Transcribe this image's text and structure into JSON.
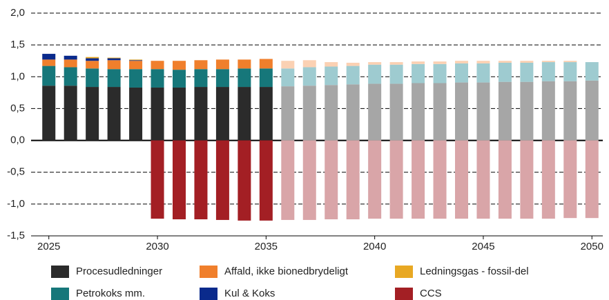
{
  "chart_data": {
    "type": "stacked_bar",
    "categories": [
      2025,
      null,
      null,
      null,
      null,
      2030,
      null,
      null,
      null,
      null,
      2035,
      null,
      null,
      null,
      null,
      2040,
      null,
      null,
      null,
      null,
      2045,
      null,
      null,
      null,
      null,
      2050
    ],
    "ylim": [
      -1.5,
      2.0
    ],
    "yticks": [
      {
        "value": -1.5,
        "label": "-1,5"
      },
      {
        "value": -1.0,
        "label": "-1,0"
      },
      {
        "value": -0.5,
        "label": "-0,5"
      },
      {
        "value": 0,
        "label": "0,0"
      },
      {
        "value": 0.5,
        "label": "0,5"
      },
      {
        "value": 1.0,
        "label": "1,0"
      },
      {
        "value": 1.5,
        "label": "1,5"
      },
      {
        "value": 2.0,
        "label": "2,0"
      }
    ],
    "grid": true,
    "series": [
      {
        "name": "Procesudledninger",
        "color": "#2b2b2b",
        "colors": [
          "#2b2b2b",
          "#2b2b2b",
          "#2b2b2b",
          "#2b2b2b",
          "#2b2b2b",
          "#2b2b2b",
          "#2b2b2b",
          "#2b2b2b",
          "#2b2b2b",
          "#2b2b2b",
          "#2b2b2b",
          "#a6a6a6",
          "#a6a6a6",
          "#a6a6a6",
          "#a6a6a6",
          "#a6a6a6",
          "#a6a6a6",
          "#a6a6a6",
          "#a6a6a6",
          "#a6a6a6",
          "#a6a6a6",
          "#a6a6a6",
          "#a6a6a6",
          "#a6a6a6",
          "#a6a6a6",
          "#a6a6a6"
        ],
        "values": [
          0.86,
          0.86,
          0.84,
          0.84,
          0.83,
          0.83,
          0.83,
          0.84,
          0.84,
          0.84,
          0.84,
          0.85,
          0.86,
          0.87,
          0.88,
          0.89,
          0.89,
          0.9,
          0.9,
          0.91,
          0.91,
          0.92,
          0.92,
          0.93,
          0.93,
          0.94
        ]
      },
      {
        "name": "Petrokoks mm.",
        "color": "#16777a",
        "colors": [
          "#16777a",
          "#16777a",
          "#16777a",
          "#16777a",
          "#16777a",
          "#16777a",
          "#16777a",
          "#16777a",
          "#16777a",
          "#16777a",
          "#16777a",
          "#9ecbd0",
          "#9ecbd0",
          "#9ecbd0",
          "#9ecbd0",
          "#9ecbd0",
          "#9ecbd0",
          "#9ecbd0",
          "#9ecbd0",
          "#9ecbd0",
          "#9ecbd0",
          "#9ecbd0",
          "#9ecbd0",
          "#9ecbd0",
          "#9ecbd0",
          "#9ecbd0"
        ],
        "values": [
          0.31,
          0.29,
          0.29,
          0.28,
          0.29,
          0.29,
          0.28,
          0.28,
          0.28,
          0.29,
          0.29,
          0.28,
          0.29,
          0.29,
          0.29,
          0.3,
          0.3,
          0.3,
          0.3,
          0.3,
          0.3,
          0.3,
          0.3,
          0.3,
          0.3,
          0.29
        ]
      },
      {
        "name": "Affald, ikke bionedbrydeligt",
        "color": "#f07f2c",
        "colors": [
          "#f07f2c",
          "#f07f2c",
          "#f07f2c",
          "#f07f2c",
          "#f07f2c",
          "#f07f2c",
          "#f07f2c",
          "#f07f2c",
          "#f07f2c",
          "#f07f2c",
          "#f07f2c",
          "#fbd1b3",
          "#fbd1b3",
          "#fbd1b3",
          "#fbd1b3",
          "#fbd1b3",
          "#fbd1b3",
          "#fbd1b3",
          "#fbd1b3",
          "#fbd1b3",
          "#fbd1b3",
          "#fbd1b3",
          "#fbd1b3",
          "#fbd1b3",
          "#fbd1b3",
          "#fbd1b3"
        ],
        "values": [
          0.1,
          0.12,
          0.12,
          0.14,
          0.13,
          0.13,
          0.14,
          0.14,
          0.15,
          0.14,
          0.15,
          0.12,
          0.11,
          0.07,
          0.05,
          0.04,
          0.04,
          0.04,
          0.04,
          0.04,
          0.04,
          0.03,
          0.03,
          0.02,
          0.02,
          0.0
        ]
      },
      {
        "name": "Kul & Koks",
        "color": "#0a2a8c",
        "colors": [
          "#0a2a8c",
          "#0a2a8c",
          "#0a2a8c",
          "#0a2a8c",
          "#0a2a8c",
          "#0a2a8c",
          "#0a2a8c",
          "#0a2a8c",
          "#0a2a8c",
          "#0a2a8c",
          "#0a2a8c",
          "#9aa6cf",
          "#9aa6cf",
          "#9aa6cf",
          "#9aa6cf",
          "#9aa6cf",
          "#9aa6cf",
          "#9aa6cf",
          "#9aa6cf",
          "#9aa6cf",
          "#9aa6cf",
          "#9aa6cf",
          "#9aa6cf",
          "#9aa6cf",
          "#9aa6cf",
          "#9aa6cf"
        ],
        "values": [
          0.09,
          0.06,
          0.04,
          0.03,
          0.01,
          0,
          0,
          0,
          0,
          0,
          0,
          0,
          0,
          0,
          0,
          0,
          0,
          0,
          0,
          0,
          0,
          0,
          0,
          0,
          0,
          0
        ]
      },
      {
        "name": "Ledningsgas - fossil-del",
        "color": "#e8a823",
        "colors": [
          "#e8a823",
          "#e8a823",
          "#e8a823",
          "#e8a823",
          "#e8a823",
          "#e8a823",
          "#e8a823",
          "#e8a823",
          "#e8a823",
          "#e8a823",
          "#e8a823",
          "#f7dca0",
          "#f7dca0",
          "#f7dca0",
          "#f7dca0",
          "#f7dca0",
          "#f7dca0",
          "#f7dca0",
          "#f7dca0",
          "#f7dca0",
          "#f7dca0",
          "#f7dca0",
          "#f7dca0",
          "#f7dca0",
          "#f7dca0",
          "#f7dca0"
        ],
        "values": [
          0,
          0,
          0.02,
          0.01,
          0.01,
          0,
          0,
          0,
          0,
          0,
          0,
          0,
          0,
          0,
          0,
          0,
          0,
          0,
          0,
          0,
          0,
          0,
          0,
          0,
          0,
          0
        ]
      },
      {
        "name": "CCS",
        "color": "#a31f24",
        "colors": [
          "#a31f24",
          "#a31f24",
          "#a31f24",
          "#a31f24",
          "#a31f24",
          "#a31f24",
          "#a31f24",
          "#a31f24",
          "#a31f24",
          "#a31f24",
          "#a31f24",
          "#d9a5a8",
          "#d9a5a8",
          "#d9a5a8",
          "#d9a5a8",
          "#d9a5a8",
          "#d9a5a8",
          "#d9a5a8",
          "#d9a5a8",
          "#d9a5a8",
          "#d9a5a8",
          "#d9a5a8",
          "#d9a5a8",
          "#d9a5a8",
          "#d9a5a8",
          "#d9a5a8"
        ],
        "values": [
          0,
          0,
          0,
          0,
          0,
          -1.23,
          -1.24,
          -1.24,
          -1.25,
          -1.26,
          -1.26,
          -1.25,
          -1.25,
          -1.24,
          -1.24,
          -1.23,
          -1.23,
          -1.23,
          -1.23,
          -1.23,
          -1.23,
          -1.23,
          -1.23,
          -1.23,
          -1.22,
          -1.22
        ]
      }
    ]
  }
}
